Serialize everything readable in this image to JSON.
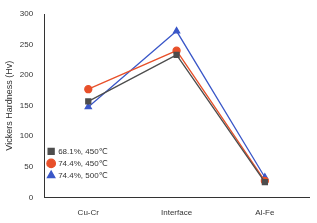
{
  "chart_data": {
    "type": "line",
    "y_label": "Vickers Hardness (Hv)",
    "categories": [
      "Cu-Cr",
      "Interface",
      "Al-Fe"
    ],
    "series": [
      {
        "name": "68.1%, 450℃",
        "color": "#4d4d4d",
        "marker": "square",
        "values": [
          157,
          233,
          25
        ]
      },
      {
        "name": "74.4%, 450℃",
        "color": "#e8502a",
        "marker": "circle",
        "values": [
          177,
          240,
          27
        ]
      },
      {
        "name": "74.4%, 500℃",
        "color": "#3a57c8",
        "marker": "triangle",
        "values": [
          148,
          272,
          33
        ]
      }
    ],
    "ylim": [
      0,
      300
    ],
    "yticks": [
      0,
      50,
      100,
      150,
      200,
      250,
      300
    ],
    "grid": false,
    "legend": "top-right"
  }
}
